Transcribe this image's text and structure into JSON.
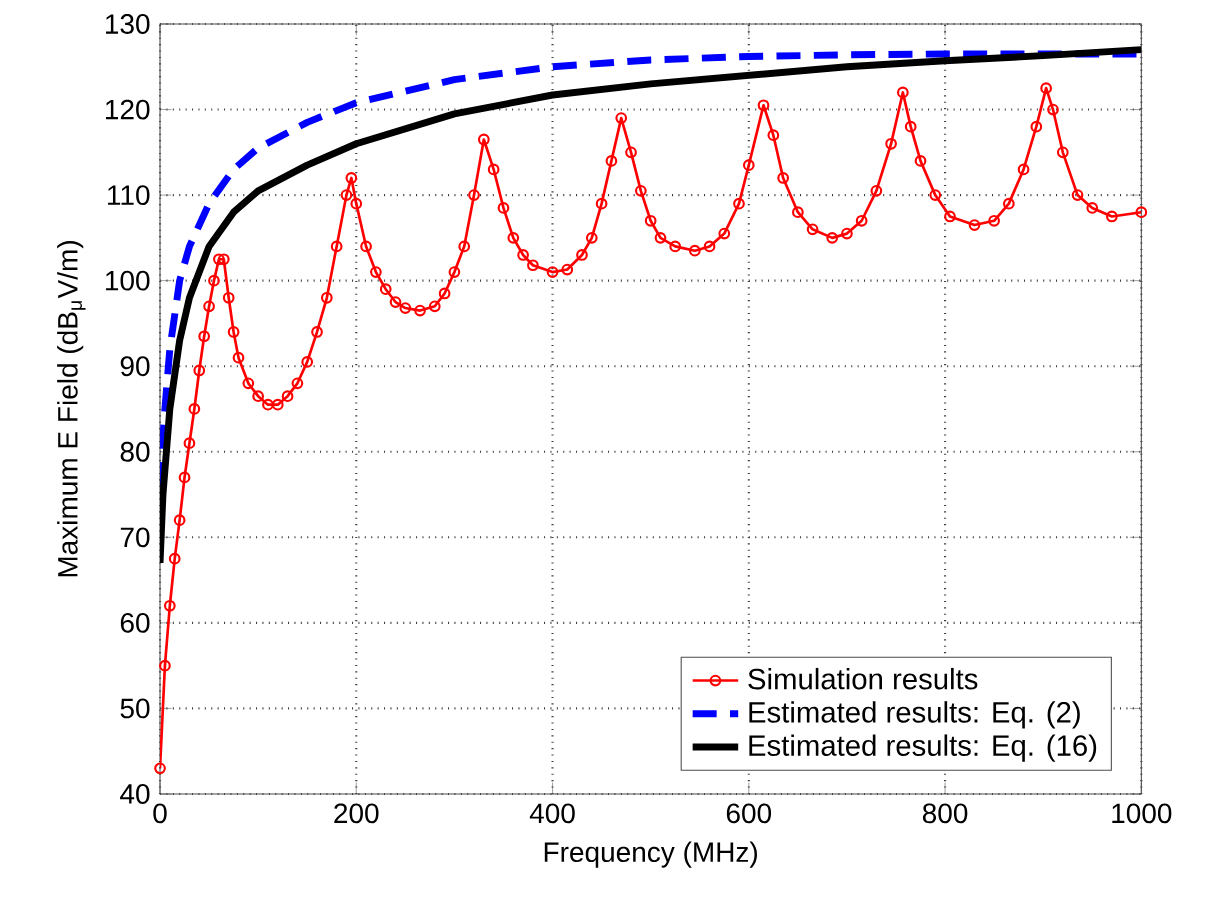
{
  "chart_data": {
    "type": "line",
    "xlabel": "Frequency (MHz)",
    "ylabel": "Maximum E Field (dB$_{μ}$V/m)",
    "xlim": [
      0,
      1000
    ],
    "ylim": [
      40,
      130
    ],
    "xticks": [
      0,
      200,
      400,
      600,
      800,
      1000
    ],
    "yticks": [
      40,
      50,
      60,
      70,
      80,
      90,
      100,
      110,
      120,
      130
    ],
    "grid": true,
    "legend": "bottom right",
    "series": [
      {
        "name": "Simulation results",
        "color": "#ff0000",
        "marker": "circle",
        "line_style": "solid",
        "x": [
          0,
          5,
          10,
          15,
          20,
          25,
          30,
          35,
          40,
          45,
          50,
          55,
          60,
          65,
          70,
          75,
          80,
          90,
          100,
          110,
          120,
          130,
          140,
          150,
          160,
          170,
          180,
          190,
          195,
          200,
          210,
          220,
          230,
          240,
          250,
          265,
          280,
          290,
          300,
          310,
          320,
          330,
          340,
          350,
          360,
          370,
          380,
          400,
          415,
          430,
          440,
          450,
          460,
          470,
          480,
          490,
          500,
          510,
          525,
          545,
          560,
          575,
          590,
          600,
          615,
          625,
          635,
          650,
          665,
          685,
          700,
          715,
          730,
          745,
          757,
          765,
          775,
          790,
          805,
          830,
          850,
          865,
          880,
          893,
          903,
          910,
          920,
          935,
          950,
          970,
          1000
        ],
        "values": [
          43,
          55,
          62,
          67.5,
          72,
          77,
          81,
          85,
          89.5,
          93.5,
          97,
          100,
          102.5,
          102.5,
          98,
          94,
          91,
          88,
          86.5,
          85.5,
          85.5,
          86.5,
          88,
          90.5,
          94,
          98,
          104,
          110,
          112,
          109,
          104,
          101,
          99,
          97.5,
          96.8,
          96.5,
          97,
          98.5,
          101,
          104,
          110,
          116.5,
          113,
          108.5,
          105,
          103,
          101.8,
          101,
          101.3,
          103,
          105,
          109,
          114,
          119,
          115,
          110.5,
          107,
          105,
          104,
          103.5,
          104,
          105.5,
          109,
          113.5,
          120.5,
          117,
          112,
          108,
          106,
          105,
          105.5,
          107,
          110.5,
          116,
          122,
          118,
          114,
          110,
          107.5,
          106.5,
          107,
          109,
          113,
          118,
          122.5,
          120,
          115,
          110,
          108.5,
          107.5,
          108
        ]
      },
      {
        "name": "Estimated results: Eq. (2)",
        "color": "#0000ff",
        "marker": "none",
        "line_style": "dashed",
        "x": [
          0,
          2,
          5,
          10,
          20,
          30,
          50,
          75,
          100,
          150,
          200,
          300,
          400,
          500,
          600,
          700,
          800,
          900,
          1000
        ],
        "values": [
          76,
          80,
          85,
          92,
          100,
          104,
          109,
          113,
          115.5,
          118.5,
          120.8,
          123.5,
          125,
          125.8,
          126.2,
          126.4,
          126.5,
          126.5,
          126.5
        ]
      },
      {
        "name": "Estimated results: Eq. (16)",
        "color": "#000000",
        "marker": "none",
        "line_style": "solid",
        "x": [
          0,
          3,
          10,
          20,
          30,
          50,
          75,
          100,
          150,
          200,
          300,
          400,
          500,
          600,
          700,
          800,
          900,
          1000
        ],
        "values": [
          67,
          75,
          85,
          93,
          98,
          104,
          108,
          110.5,
          113.5,
          116,
          119.5,
          121.7,
          123,
          124,
          125,
          125.7,
          126.3,
          127
        ]
      }
    ]
  }
}
